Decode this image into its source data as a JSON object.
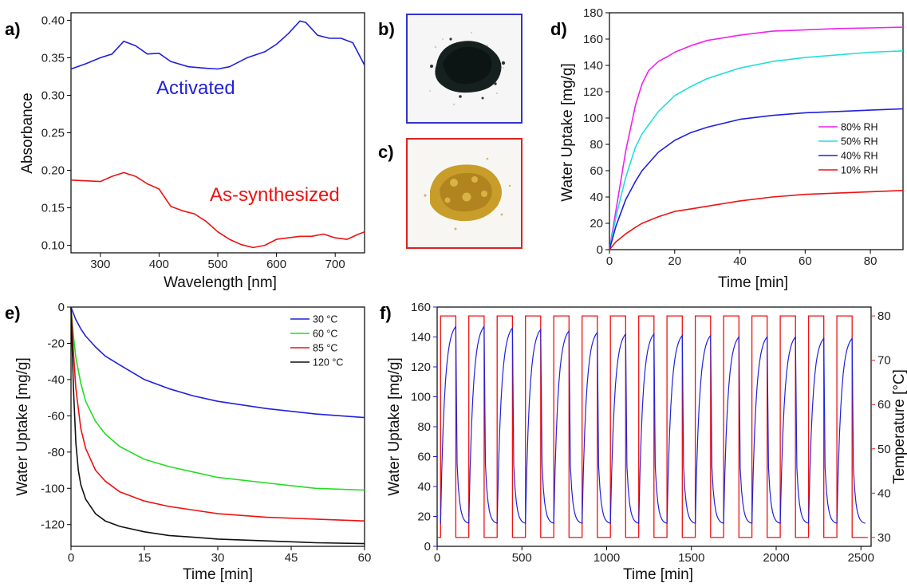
{
  "panels": {
    "a": "a)",
    "b": "b)",
    "c": "c)",
    "d": "d)",
    "e": "e)",
    "f": "f)"
  },
  "chart_data": [
    {
      "panel": "a",
      "type": "line",
      "xlabel": "Wavelength [nm]",
      "ylabel": "Absorbance",
      "xlim": [
        250,
        750
      ],
      "ylim": [
        0.09,
        0.41
      ],
      "xticks": [
        300,
        400,
        500,
        600,
        700
      ],
      "yticks": [
        0.1,
        0.15,
        0.2,
        0.25,
        0.3,
        0.35,
        0.4
      ],
      "grid": false,
      "annotations": [
        {
          "text": "Activated",
          "color": "#2020dd"
        },
        {
          "text": "As-synthesized",
          "color": "#ee1111"
        }
      ],
      "series": [
        {
          "color": "#2020dd",
          "x": [
            250,
            275,
            300,
            320,
            340,
            360,
            380,
            400,
            420,
            450,
            480,
            500,
            520,
            550,
            580,
            600,
            620,
            640,
            650,
            670,
            690,
            710,
            730,
            750
          ],
          "y": [
            0.335,
            0.342,
            0.35,
            0.355,
            0.372,
            0.366,
            0.355,
            0.356,
            0.345,
            0.338,
            0.336,
            0.335,
            0.338,
            0.35,
            0.358,
            0.368,
            0.382,
            0.399,
            0.397,
            0.38,
            0.376,
            0.376,
            0.37,
            0.34
          ]
        },
        {
          "color": "#ee1111",
          "x": [
            250,
            275,
            300,
            320,
            340,
            360,
            380,
            400,
            420,
            440,
            460,
            480,
            500,
            520,
            540,
            560,
            580,
            600,
            620,
            640,
            660,
            680,
            700,
            720,
            740,
            750
          ],
          "y": [
            0.187,
            0.186,
            0.185,
            0.192,
            0.197,
            0.192,
            0.182,
            0.175,
            0.152,
            0.146,
            0.142,
            0.132,
            0.118,
            0.108,
            0.101,
            0.097,
            0.1,
            0.108,
            0.11,
            0.112,
            0.112,
            0.115,
            0.11,
            0.108,
            0.115,
            0.118
          ]
        }
      ]
    },
    {
      "panel": "d",
      "type": "line",
      "xlabel": "Time [min]",
      "ylabel": "Water Uptake [mg/g]",
      "xlim": [
        0,
        90
      ],
      "ylim": [
        0,
        180
      ],
      "xticks": [
        0,
        20,
        40,
        60,
        80
      ],
      "yticks": [
        0,
        20,
        40,
        60,
        80,
        100,
        120,
        140,
        160,
        180
      ],
      "legend": "center-right",
      "grid": false,
      "series": [
        {
          "name": "80% RH",
          "color": "#ee22ee",
          "x": [
            0,
            2,
            5,
            8,
            10,
            12,
            15,
            18,
            20,
            25,
            30,
            40,
            50,
            60,
            70,
            80,
            90
          ],
          "y": [
            0,
            30,
            75,
            110,
            126,
            136,
            143,
            147,
            150,
            155,
            159,
            163,
            166,
            167,
            168,
            168.5,
            169
          ]
        },
        {
          "name": "50% RH",
          "color": "#22dddd",
          "x": [
            0,
            2,
            5,
            8,
            10,
            15,
            20,
            25,
            30,
            40,
            50,
            60,
            70,
            80,
            90
          ],
          "y": [
            0,
            25,
            55,
            78,
            88,
            105,
            117,
            124,
            130,
            138,
            143,
            146,
            148,
            150,
            151
          ]
        },
        {
          "name": "40% RH",
          "color": "#2020dd",
          "x": [
            0,
            2,
            5,
            8,
            10,
            15,
            20,
            25,
            30,
            40,
            50,
            60,
            70,
            80,
            90
          ],
          "y": [
            0,
            18,
            38,
            52,
            60,
            74,
            83,
            89,
            93,
            99,
            102,
            104,
            105,
            106,
            107
          ]
        },
        {
          "name": "10% RH",
          "color": "#ee1111",
          "x": [
            0,
            2,
            5,
            8,
            10,
            15,
            20,
            25,
            30,
            40,
            50,
            60,
            70,
            80,
            90
          ],
          "y": [
            0,
            6,
            12,
            17,
            20,
            25,
            29,
            31,
            33,
            37,
            40,
            42,
            43,
            44,
            45
          ]
        }
      ]
    },
    {
      "panel": "e",
      "type": "line",
      "xlabel": "Time [min]",
      "ylabel": "Water Uptake [mg/g]",
      "xlim": [
        0,
        60
      ],
      "ylim": [
        -132,
        0
      ],
      "xticks": [
        0,
        15,
        30,
        45,
        60
      ],
      "yticks": [
        0,
        -20,
        -40,
        -60,
        -80,
        -100,
        -120
      ],
      "legend": "top-right",
      "grid": false,
      "series": [
        {
          "name": "30 °C",
          "color": "#2020dd",
          "x": [
            0,
            1,
            2,
            3,
            5,
            7,
            10,
            15,
            20,
            25,
            30,
            40,
            50,
            60
          ],
          "y": [
            0,
            -7,
            -12,
            -16,
            -22,
            -27,
            -32,
            -40,
            -45,
            -49,
            -52,
            -56,
            -59,
            -61
          ]
        },
        {
          "name": "60 °C",
          "color": "#22dd22",
          "x": [
            0,
            0.5,
            1,
            2,
            3,
            5,
            7,
            10,
            15,
            20,
            25,
            30,
            40,
            50,
            60
          ],
          "y": [
            0,
            -16,
            -28,
            -42,
            -52,
            -63,
            -70,
            -77,
            -84,
            -88,
            -91,
            -94,
            -97,
            -100,
            -101
          ]
        },
        {
          "name": "85 °C",
          "color": "#ee1111",
          "x": [
            0,
            0.5,
            1,
            2,
            3,
            5,
            7,
            10,
            15,
            20,
            25,
            30,
            40,
            50,
            60
          ],
          "y": [
            0,
            -25,
            -45,
            -67,
            -78,
            -90,
            -96,
            -102,
            -107,
            -110,
            -112,
            -114,
            -116,
            -117,
            -118
          ]
        },
        {
          "name": "120 °C",
          "color": "#111111",
          "x": [
            0,
            0.5,
            1,
            1.5,
            2,
            3,
            5,
            7,
            10,
            15,
            20,
            25,
            30,
            40,
            50,
            60
          ],
          "y": [
            0,
            -45,
            -75,
            -90,
            -98,
            -106,
            -114,
            -118,
            -121,
            -124,
            -126,
            -127,
            -128,
            -129,
            -130,
            -130.5
          ]
        }
      ]
    },
    {
      "panel": "f",
      "type": "line",
      "xlabel": "Time [min]",
      "ylabel": "Water Uptake [mg/g]",
      "ylabel_right": "Temperature [°C]",
      "xlim": [
        0,
        2560
      ],
      "ylim": [
        0,
        160
      ],
      "ylim_right": [
        28,
        82
      ],
      "xticks": [
        0,
        500,
        1000,
        1500,
        2000,
        2500
      ],
      "yticks": [
        0,
        20,
        40,
        60,
        80,
        100,
        120,
        140,
        160
      ],
      "yticks_right": [
        30,
        40,
        50,
        60,
        70,
        80
      ],
      "grid": false,
      "cycles": {
        "count": 15,
        "period": 167,
        "start": 20,
        "high_duration": 90,
        "temp_high": 80,
        "temp_low": 30,
        "uptake_min": 15,
        "uptake_peaks": [
          147,
          147,
          146,
          145,
          144,
          143,
          142,
          142,
          141,
          141,
          140,
          140,
          140,
          139,
          139
        ]
      },
      "series": [
        {
          "name": "Water Uptake",
          "color": "#2020dd",
          "axis": "left"
        },
        {
          "name": "Temperature",
          "color": "#ee1111",
          "axis": "right"
        }
      ]
    }
  ]
}
